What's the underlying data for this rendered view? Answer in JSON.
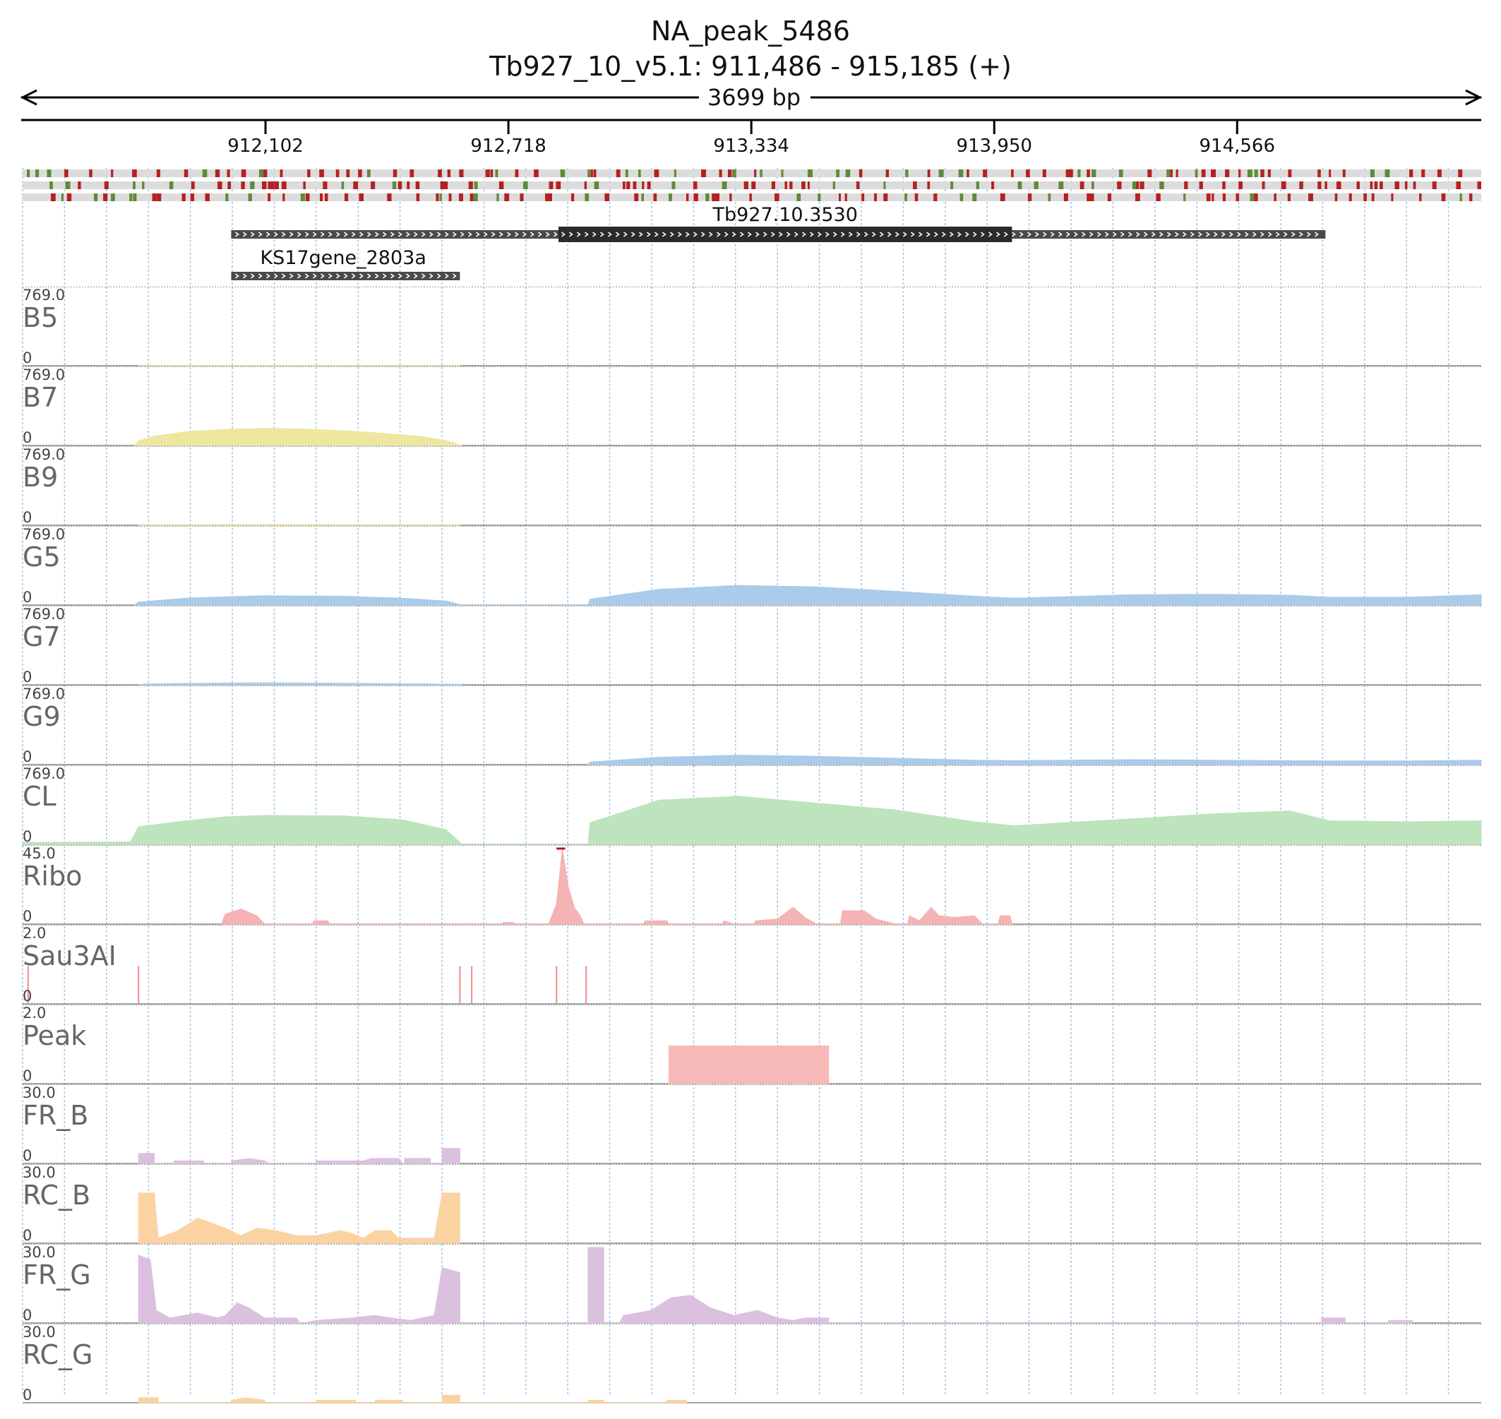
{
  "header": {
    "title": "NA_peak_5486",
    "subtitle": "Tb927_10_v5.1: 911,486 - 915,185 (+)",
    "span_label": "3699 bp"
  },
  "colors": {
    "grid": "#9fc3e6",
    "variant_red": "#b52020",
    "variant_green": "#5f8a3a",
    "variant_bg": "#dcdcdc",
    "gene": "#2b2b2b"
  },
  "chart_data": {
    "type": "area",
    "region": {
      "chrom": "Tb927_10_v5.1",
      "start": 911486,
      "end": 915185,
      "strand": "+"
    },
    "axis_ticks": [
      {
        "pos": 912102,
        "label": "912,102"
      },
      {
        "pos": 912718,
        "label": "912,718"
      },
      {
        "pos": 913334,
        "label": "913,334"
      },
      {
        "pos": 913950,
        "label": "913,950"
      },
      {
        "pos": 914566,
        "label": "914,566"
      }
    ],
    "grid": true,
    "genes": [
      {
        "name": "Tb927.10.3530",
        "start": 912015,
        "end": 914790,
        "cds_start": 912845,
        "cds_end": 913995,
        "strand": "+"
      },
      {
        "name": "KS17gene_2803a",
        "start": 912015,
        "end": 912595,
        "strand": "+"
      }
    ],
    "tracks": [
      {
        "name": "B5",
        "max_label": "769.0",
        "min_label": "0",
        "ymax": 769,
        "color": "#e8df98",
        "points": [
          [
            911780,
            0
          ],
          [
            911800,
            2
          ],
          [
            912100,
            3
          ],
          [
            912400,
            2
          ],
          [
            912595,
            2
          ],
          [
            912596,
            0
          ]
        ]
      },
      {
        "name": "B7",
        "max_label": "769.0",
        "min_label": "0",
        "ymax": 769,
        "color": "#ede7a0",
        "points": [
          [
            911770,
            0
          ],
          [
            911780,
            45
          ],
          [
            911820,
            95
          ],
          [
            911900,
            140
          ],
          [
            912000,
            165
          ],
          [
            912100,
            175
          ],
          [
            912200,
            168
          ],
          [
            912300,
            150
          ],
          [
            912400,
            125
          ],
          [
            912500,
            90
          ],
          [
            912560,
            50
          ],
          [
            912600,
            0
          ]
        ]
      },
      {
        "name": "B9",
        "max_label": "769.0",
        "min_label": "0",
        "ymax": 769,
        "color": "#e8df98",
        "points": [
          [
            911780,
            0
          ],
          [
            911800,
            4
          ],
          [
            912100,
            7
          ],
          [
            912400,
            5
          ],
          [
            912595,
            4
          ],
          [
            912596,
            0
          ]
        ]
      },
      {
        "name": "G5",
        "max_label": "769.0",
        "min_label": "0",
        "ymax": 769,
        "color": "#aacbea",
        "points": [
          [
            911770,
            0
          ],
          [
            911780,
            30
          ],
          [
            911900,
            70
          ],
          [
            912100,
            95
          ],
          [
            912300,
            90
          ],
          [
            912450,
            70
          ],
          [
            912560,
            40
          ],
          [
            912600,
            0
          ],
          [
            912920,
            0
          ],
          [
            912925,
            60
          ],
          [
            913100,
            160
          ],
          [
            913300,
            200
          ],
          [
            913500,
            185
          ],
          [
            913700,
            140
          ],
          [
            913900,
            90
          ],
          [
            914000,
            70
          ],
          [
            914300,
            105
          ],
          [
            914500,
            110
          ],
          [
            914700,
            100
          ],
          [
            914800,
            80
          ],
          [
            915000,
            80
          ],
          [
            915185,
            105
          ]
        ]
      },
      {
        "name": "G7",
        "max_label": "769.0",
        "min_label": "0",
        "ymax": 769,
        "color": "#aacbea",
        "points": [
          [
            911780,
            0
          ],
          [
            911800,
            10
          ],
          [
            912000,
            18
          ],
          [
            912100,
            20
          ],
          [
            912300,
            16
          ],
          [
            912500,
            10
          ],
          [
            912595,
            5
          ],
          [
            912600,
            0
          ]
        ]
      },
      {
        "name": "G9",
        "max_label": "769.0",
        "min_label": "0",
        "ymax": 769,
        "color": "#aacbea",
        "points": [
          [
            912920,
            0
          ],
          [
            912925,
            25
          ],
          [
            913100,
            75
          ],
          [
            913300,
            95
          ],
          [
            913500,
            85
          ],
          [
            913700,
            65
          ],
          [
            913900,
            45
          ],
          [
            914000,
            40
          ],
          [
            914300,
            50
          ],
          [
            914500,
            45
          ],
          [
            914800,
            38
          ],
          [
            915000,
            38
          ],
          [
            915185,
            45
          ]
        ]
      },
      {
        "name": "CL",
        "max_label": "769.0",
        "min_label": "0",
        "ymax": 769,
        "color": "#bde4bd",
        "points": [
          [
            911486,
            0
          ],
          [
            911490,
            20
          ],
          [
            911760,
            25
          ],
          [
            911780,
            180
          ],
          [
            911900,
            240
          ],
          [
            912000,
            280
          ],
          [
            912100,
            295
          ],
          [
            912300,
            290
          ],
          [
            912450,
            250
          ],
          [
            912560,
            150
          ],
          [
            912600,
            0
          ],
          [
            912920,
            0
          ],
          [
            912925,
            220
          ],
          [
            913100,
            450
          ],
          [
            913300,
            490
          ],
          [
            913500,
            420
          ],
          [
            913700,
            350
          ],
          [
            913900,
            230
          ],
          [
            914000,
            190
          ],
          [
            914300,
            260
          ],
          [
            914500,
            310
          ],
          [
            914700,
            340
          ],
          [
            914800,
            240
          ],
          [
            915000,
            230
          ],
          [
            915185,
            240
          ]
        ]
      },
      {
        "name": "Ribo",
        "max_label": "45.0",
        "min_label": "0",
        "ymax": 45,
        "color": "#f5b3b3",
        "overflow": true,
        "points": [
          [
            911990,
            0
          ],
          [
            912000,
            6
          ],
          [
            912040,
            9
          ],
          [
            912080,
            5
          ],
          [
            912100,
            0
          ],
          [
            912220,
            0
          ],
          [
            912225,
            2
          ],
          [
            912260,
            2
          ],
          [
            912265,
            0
          ],
          [
            912700,
            0
          ],
          [
            912705,
            1
          ],
          [
            912730,
            1
          ],
          [
            912735,
            0
          ],
          [
            912820,
            0
          ],
          [
            912840,
            12
          ],
          [
            912855,
            46
          ],
          [
            912870,
            22
          ],
          [
            912885,
            10
          ],
          [
            912900,
            5
          ],
          [
            912910,
            0
          ],
          [
            913060,
            0
          ],
          [
            913065,
            2
          ],
          [
            913120,
            2
          ],
          [
            913125,
            0
          ],
          [
            913260,
            0
          ],
          [
            913265,
            2
          ],
          [
            913290,
            0
          ],
          [
            913340,
            0
          ],
          [
            913345,
            2
          ],
          [
            913400,
            3
          ],
          [
            913440,
            10
          ],
          [
            913470,
            4
          ],
          [
            913500,
            0
          ],
          [
            913560,
            0
          ],
          [
            913565,
            8
          ],
          [
            913620,
            8
          ],
          [
            913650,
            3
          ],
          [
            913700,
            0
          ],
          [
            913730,
            0
          ],
          [
            913735,
            5
          ],
          [
            913760,
            2
          ],
          [
            913790,
            10
          ],
          [
            913810,
            5
          ],
          [
            913850,
            4
          ],
          [
            913900,
            5
          ],
          [
            913920,
            0
          ],
          [
            913960,
            0
          ],
          [
            913965,
            5
          ],
          [
            913990,
            5
          ],
          [
            913995,
            0
          ]
        ]
      },
      {
        "name": "Sau3AI",
        "max_label": "2.0",
        "min_label": "0",
        "ymax": 2,
        "color": "#f08a8a",
        "lines": [
          911500,
          911780,
          912595,
          912625,
          912840,
          912915
        ]
      },
      {
        "name": "Peak",
        "max_label": "2.0",
        "min_label": "0",
        "ymax": 2,
        "color": "#f7b8b8",
        "points": [
          [
            913125,
            0
          ],
          [
            913125,
            1
          ],
          [
            913530,
            1
          ],
          [
            913530,
            0
          ]
        ]
      },
      {
        "name": "FR_B",
        "max_label": "30.0",
        "min_label": "0",
        "ymax": 30,
        "color": "#dcc0e0",
        "points": [
          [
            911780,
            0
          ],
          [
            911780,
            4
          ],
          [
            911820,
            4
          ],
          [
            911820,
            0
          ],
          [
            911870,
            0
          ],
          [
            911870,
            1
          ],
          [
            911945,
            1
          ],
          [
            911945,
            0
          ],
          [
            912015,
            0
          ],
          [
            912015,
            1
          ],
          [
            912060,
            2
          ],
          [
            912100,
            1
          ],
          [
            912110,
            0
          ],
          [
            912230,
            0
          ],
          [
            912230,
            1
          ],
          [
            912350,
            1
          ],
          [
            912370,
            2
          ],
          [
            912440,
            2
          ],
          [
            912450,
            0
          ],
          [
            912455,
            0
          ],
          [
            912455,
            2
          ],
          [
            912520,
            2
          ],
          [
            912520,
            0
          ],
          [
            912550,
            0
          ],
          [
            912550,
            6
          ],
          [
            912595,
            6
          ],
          [
            912595,
            0
          ]
        ]
      },
      {
        "name": "RC_B",
        "max_label": "30.0",
        "min_label": "0",
        "ymax": 30,
        "color": "#fbd3a3",
        "points": [
          [
            911780,
            0
          ],
          [
            911780,
            20
          ],
          [
            911820,
            20
          ],
          [
            911830,
            2
          ],
          [
            911880,
            5
          ],
          [
            911930,
            10
          ],
          [
            912000,
            6
          ],
          [
            912040,
            3
          ],
          [
            912080,
            6
          ],
          [
            912130,
            5
          ],
          [
            912180,
            3
          ],
          [
            912230,
            3
          ],
          [
            912290,
            5
          ],
          [
            912320,
            4
          ],
          [
            912350,
            2
          ],
          [
            912380,
            5
          ],
          [
            912420,
            5
          ],
          [
            912440,
            2
          ],
          [
            912530,
            2
          ],
          [
            912550,
            20
          ],
          [
            912595,
            20
          ],
          [
            912595,
            0
          ]
        ]
      },
      {
        "name": "FR_G",
        "max_label": "30.0",
        "min_label": "0",
        "ymax": 30,
        "color": "#dcc0e0",
        "overflow": true,
        "points": [
          [
            911780,
            0
          ],
          [
            911780,
            27
          ],
          [
            911810,
            25
          ],
          [
            911825,
            5
          ],
          [
            911860,
            2
          ],
          [
            911930,
            4
          ],
          [
            911980,
            2
          ],
          [
            912000,
            3
          ],
          [
            912030,
            8
          ],
          [
            912060,
            6
          ],
          [
            912100,
            2
          ],
          [
            912180,
            2
          ],
          [
            912190,
            0
          ],
          [
            912200,
            0
          ],
          [
            912230,
            1
          ],
          [
            912320,
            2
          ],
          [
            912380,
            3
          ],
          [
            912420,
            2
          ],
          [
            912470,
            1
          ],
          [
            912530,
            3
          ],
          [
            912550,
            22
          ],
          [
            912595,
            20
          ],
          [
            912595,
            0
          ],
          [
            912920,
            0
          ],
          [
            912920,
            30
          ],
          [
            912960,
            30
          ],
          [
            912960,
            0
          ],
          [
            913000,
            0
          ],
          [
            913010,
            3
          ],
          [
            913080,
            5
          ],
          [
            913130,
            10
          ],
          [
            913180,
            11
          ],
          [
            913230,
            6
          ],
          [
            913290,
            3
          ],
          [
            913350,
            5
          ],
          [
            913400,
            2
          ],
          [
            913440,
            1
          ],
          [
            913470,
            2
          ],
          [
            913530,
            2
          ],
          [
            913530,
            0
          ],
          [
            914780,
            0
          ],
          [
            914780,
            2
          ],
          [
            914840,
            2
          ],
          [
            914840,
            0
          ],
          [
            914950,
            0
          ],
          [
            914950,
            1
          ],
          [
            915010,
            1
          ],
          [
            915010,
            0
          ]
        ]
      },
      {
        "name": "RC_G",
        "max_label": "30.0",
        "min_label": "0",
        "ymax": 30,
        "color": "#fbd3a3",
        "points": [
          [
            911780,
            0
          ],
          [
            911780,
            2
          ],
          [
            911830,
            2
          ],
          [
            911830,
            0
          ],
          [
            912015,
            0
          ],
          [
            912015,
            1
          ],
          [
            912050,
            2
          ],
          [
            912100,
            1
          ],
          [
            912100,
            0
          ],
          [
            912230,
            0
          ],
          [
            912230,
            1
          ],
          [
            912330,
            1
          ],
          [
            912330,
            0
          ],
          [
            912380,
            0
          ],
          [
            912380,
            1
          ],
          [
            912450,
            1
          ],
          [
            912450,
            0
          ],
          [
            912550,
            0
          ],
          [
            912550,
            3
          ],
          [
            912595,
            3
          ],
          [
            912595,
            0
          ],
          [
            912920,
            0
          ],
          [
            912920,
            1
          ],
          [
            912960,
            1
          ],
          [
            912960,
            0
          ],
          [
            913120,
            0
          ],
          [
            913120,
            1
          ],
          [
            913170,
            1
          ],
          [
            913170,
            0
          ]
        ]
      }
    ]
  }
}
